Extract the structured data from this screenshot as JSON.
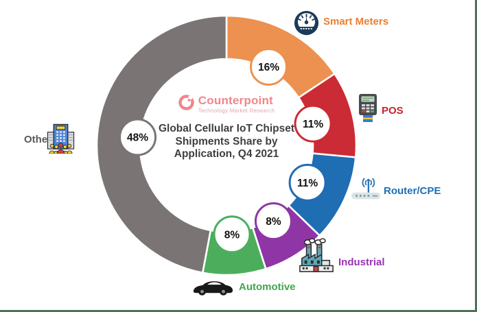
{
  "frame": {
    "background": "#FFFFFF",
    "border_color": "#4C7355"
  },
  "center_panel": {
    "logo": {
      "brand": "Counterpoint",
      "tagline": "Technology Market Research",
      "brand_color": "#F2858B",
      "tagline_color": "#DCA9AD"
    },
    "title_lines": {
      "line1": "Global Cellular IoT Chipset",
      "line2": "Shipments Share by",
      "line3": "Application, Q4 2021"
    },
    "title_color": "#3F3F3F"
  },
  "chart_data": {
    "type": "pie",
    "subtype": "donut",
    "title": "Global Cellular IoT Chipset Shipments Share by Application, Q4 2021",
    "unit": "%",
    "start_angle_deg": 0,
    "direction": "clockwise",
    "gap_stroke_color": "#FFFFFF",
    "categories": [
      "Smart Meters",
      "POS",
      "Router/CPE",
      "Industrial",
      "Automotive",
      "Others"
    ],
    "values": [
      16,
      11,
      11,
      8,
      8,
      48
    ],
    "segments": [
      {
        "label": "Smart Meters",
        "value": 16,
        "pct_label": "16%",
        "color": "#EC9150",
        "label_color": "#ED7D31",
        "icon": "gauge-icon"
      },
      {
        "label": "POS",
        "value": 11,
        "pct_label": "11%",
        "color": "#CB2B35",
        "label_color": "#C2262E",
        "icon": "pos-terminal-icon"
      },
      {
        "label": "Router/CPE",
        "value": 11,
        "pct_label": "11%",
        "color": "#1F6DB3",
        "label_color": "#1F6FB5",
        "icon": "router-icon"
      },
      {
        "label": "Industrial",
        "value": 8,
        "pct_label": "8%",
        "color": "#8F35A6",
        "label_color": "#9933B5",
        "icon": "factory-icon"
      },
      {
        "label": "Automotive",
        "value": 8,
        "pct_label": "8%",
        "color": "#4CAE5C",
        "label_color": "#3FA74F",
        "icon": "car-icon"
      },
      {
        "label": "Others",
        "value": 48,
        "pct_label": "48%",
        "color": "#7A7474",
        "label_color": "#595959",
        "icon": "buildings-icon"
      }
    ],
    "bubble": {
      "fill": "#FFFFFF",
      "text_color": "#111111"
    }
  }
}
